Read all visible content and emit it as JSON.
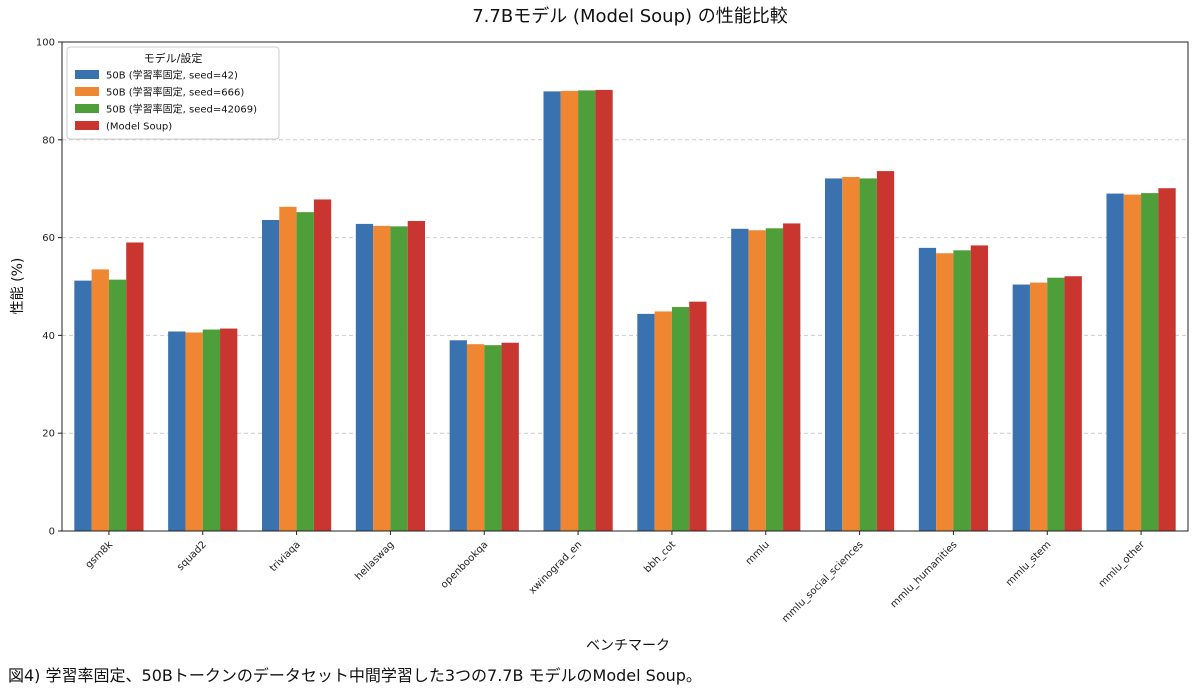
{
  "chart_data": {
    "type": "bar",
    "title": "7.7Bモデル (Model Soup) の性能比較",
    "xlabel": "ベンチマーク",
    "ylabel": "性能 (%)",
    "ylim": [
      0,
      100
    ],
    "yticks": [
      0,
      20,
      40,
      60,
      80,
      100
    ],
    "grid": "y-dashed",
    "legend_title": "モデル/設定",
    "legend_position": "top-left",
    "categories": [
      "gsm8k",
      "squad2",
      "triviaqa",
      "hellaswag",
      "openbookqa",
      "xwinograd_en",
      "bbh_cot",
      "mmlu",
      "mmlu_social_sciences",
      "mmlu_humanities",
      "mmlu_stem",
      "mmlu_other"
    ],
    "series": [
      {
        "name": "50B (学習率固定, seed=42)",
        "color": "#3a72b0",
        "values": [
          51.2,
          40.8,
          63.6,
          62.8,
          39.0,
          89.9,
          44.4,
          61.8,
          72.1,
          57.9,
          50.4,
          69.0
        ]
      },
      {
        "name": "50B (学習率固定, seed=666)",
        "color": "#ef8632",
        "values": [
          53.5,
          40.6,
          66.3,
          62.4,
          38.2,
          90.0,
          44.9,
          61.5,
          72.4,
          56.8,
          50.8,
          68.8
        ]
      },
      {
        "name": "50B (学習率固定, seed=42069)",
        "color": "#4e9e3a",
        "values": [
          51.4,
          41.2,
          65.2,
          62.3,
          38.0,
          90.1,
          45.8,
          61.9,
          72.1,
          57.4,
          51.8,
          69.1
        ]
      },
      {
        "name": "(Model Soup)",
        "color": "#c9352f",
        "values": [
          59.0,
          41.4,
          67.8,
          63.4,
          38.5,
          90.2,
          46.9,
          62.9,
          73.6,
          58.4,
          52.1,
          70.1
        ]
      }
    ]
  },
  "caption": "図4) 学習率固定、50Bトークンのデータセット中間学習した3つの7.7B モデルのModel Soup。"
}
